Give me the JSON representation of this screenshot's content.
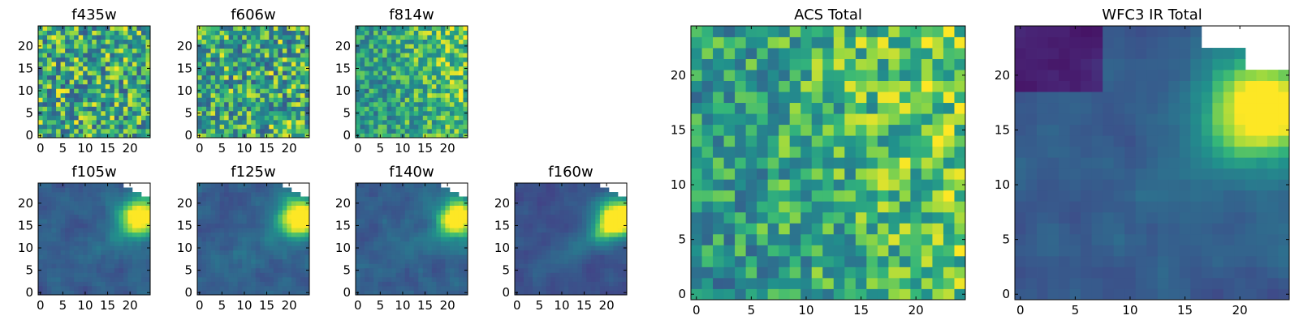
{
  "chart_data": [
    {
      "type": "heatmap",
      "title": "f435w",
      "pattern": "noise",
      "seed": 11,
      "xticks": [
        "0",
        "5",
        "10",
        "15",
        "20"
      ],
      "yticks": [
        "0",
        "5",
        "10",
        "15",
        "20"
      ],
      "xlim": [
        -0.5,
        24.5
      ],
      "ylim": [
        -0.5,
        24.5
      ],
      "colormap": "viridis"
    },
    {
      "type": "heatmap",
      "title": "f606w",
      "pattern": "noise",
      "seed": 23,
      "xticks": [
        "0",
        "5",
        "10",
        "15",
        "20"
      ],
      "yticks": [
        "0",
        "5",
        "10",
        "15",
        "20"
      ],
      "xlim": [
        -0.5,
        24.5
      ],
      "ylim": [
        -0.5,
        24.5
      ],
      "colormap": "viridis"
    },
    {
      "type": "heatmap",
      "title": "f814w",
      "pattern": "noise_gradient",
      "seed": 37,
      "xticks": [
        "0",
        "5",
        "10",
        "15",
        "20"
      ],
      "yticks": [
        "0",
        "5",
        "10",
        "15",
        "20"
      ],
      "xlim": [
        -0.5,
        24.5
      ],
      "ylim": [
        -0.5,
        24.5
      ],
      "colormap": "viridis"
    },
    {
      "type": "heatmap",
      "title": "f105w",
      "pattern": "ir",
      "seed": 41,
      "xticks": [
        "0",
        "5",
        "10",
        "15",
        "20"
      ],
      "yticks": [
        "0",
        "5",
        "10",
        "15",
        "20"
      ],
      "xlim": [
        -0.5,
        24.5
      ],
      "ylim": [
        -0.5,
        24.5
      ],
      "colormap": "viridis",
      "missing_corner": "top-right"
    },
    {
      "type": "heatmap",
      "title": "f125w",
      "pattern": "ir",
      "seed": 53,
      "xticks": [
        "0",
        "5",
        "10",
        "15",
        "20"
      ],
      "yticks": [
        "0",
        "5",
        "10",
        "15",
        "20"
      ],
      "xlim": [
        -0.5,
        24.5
      ],
      "ylim": [
        -0.5,
        24.5
      ],
      "colormap": "viridis",
      "missing_corner": "top-right"
    },
    {
      "type": "heatmap",
      "title": "f140w",
      "pattern": "ir",
      "seed": 67,
      "xticks": [
        "0",
        "5",
        "10",
        "15",
        "20"
      ],
      "yticks": [
        "0",
        "5",
        "10",
        "15",
        "20"
      ],
      "xlim": [
        -0.5,
        24.5
      ],
      "ylim": [
        -0.5,
        24.5
      ],
      "colormap": "viridis",
      "missing_corner": "top-right"
    },
    {
      "type": "heatmap",
      "title": "f160w",
      "pattern": "ir_strong",
      "seed": 79,
      "xticks": [
        "0",
        "5",
        "10",
        "15",
        "20"
      ],
      "yticks": [
        "0",
        "5",
        "10",
        "15",
        "20"
      ],
      "xlim": [
        -0.5,
        24.5
      ],
      "ylim": [
        -0.5,
        24.5
      ],
      "colormap": "viridis",
      "missing_corner": "top-right"
    },
    {
      "type": "heatmap",
      "title": "ACS Total",
      "pattern": "noise_gradient",
      "seed": 97,
      "xticks": [
        "0",
        "5",
        "10",
        "15",
        "20"
      ],
      "yticks": [
        "0",
        "5",
        "10",
        "15",
        "20"
      ],
      "xlim": [
        -0.5,
        24.5
      ],
      "ylim": [
        -0.5,
        24.5
      ],
      "colormap": "viridis"
    },
    {
      "type": "heatmap",
      "title": "WFC3 IR Total",
      "pattern": "ir_total",
      "seed": 103,
      "xticks": [
        "0",
        "5",
        "10",
        "15",
        "20"
      ],
      "yticks": [
        "0",
        "5",
        "10",
        "15",
        "20"
      ],
      "xlim": [
        -0.5,
        24.5
      ],
      "ylim": [
        -0.5,
        24.5
      ],
      "colormap": "viridis",
      "missing_corner": "top-right"
    }
  ]
}
